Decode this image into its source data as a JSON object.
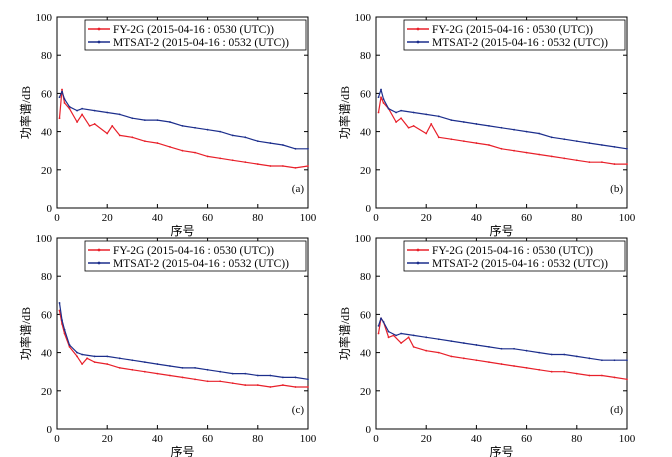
{
  "chart_data": [
    {
      "type": "line",
      "panel_label": "(a)",
      "xlabel": "序号",
      "ylabel": "功率谱/dB",
      "xlim": [
        0,
        100
      ],
      "ylim": [
        0,
        100
      ],
      "xticks": [
        0,
        20,
        40,
        60,
        80,
        100
      ],
      "yticks": [
        0,
        20,
        40,
        60,
        80,
        100
      ],
      "legend_position": "top-right",
      "series": [
        {
          "name": "FY-2G (2015-04-16 : 0530 (UTC))",
          "color": "#e8202a",
          "x": [
            1,
            2,
            3,
            5,
            8,
            10,
            13,
            15,
            20,
            22,
            25,
            30,
            35,
            40,
            45,
            50,
            55,
            60,
            65,
            70,
            75,
            80,
            85,
            90,
            95,
            100
          ],
          "y": [
            47,
            62,
            55,
            52,
            45,
            49,
            43,
            44,
            39,
            43,
            38,
            37,
            35,
            34,
            32,
            30,
            29,
            27,
            26,
            25,
            24,
            23,
            22,
            22,
            21,
            22
          ]
        },
        {
          "name": "MTSAT-2 (2015-04-16 : 0532 (UTC))",
          "color": "#1c2e8c",
          "x": [
            1,
            2,
            3,
            5,
            8,
            10,
            15,
            20,
            25,
            30,
            35,
            40,
            45,
            50,
            55,
            60,
            65,
            70,
            75,
            80,
            85,
            90,
            95,
            100
          ],
          "y": [
            58,
            61,
            57,
            53,
            51,
            52,
            51,
            50,
            49,
            47,
            46,
            46,
            45,
            43,
            42,
            41,
            40,
            38,
            37,
            35,
            34,
            33,
            31,
            31
          ]
        }
      ]
    },
    {
      "type": "line",
      "panel_label": "(b)",
      "xlabel": "序号",
      "ylabel": "功率谱/dB",
      "xlim": [
        0,
        100
      ],
      "ylim": [
        0,
        100
      ],
      "xticks": [
        0,
        20,
        40,
        60,
        80,
        100
      ],
      "yticks": [
        0,
        20,
        40,
        60,
        80,
        100
      ],
      "legend_position": "top-right",
      "series": [
        {
          "name": "FY-2G (2015-04-16 : 0530 (UTC))",
          "color": "#e8202a",
          "x": [
            1,
            2,
            3,
            5,
            8,
            10,
            13,
            15,
            20,
            22,
            25,
            30,
            35,
            40,
            45,
            50,
            55,
            60,
            65,
            70,
            75,
            80,
            85,
            90,
            95,
            100
          ],
          "y": [
            50,
            58,
            55,
            52,
            45,
            47,
            42,
            43,
            39,
            44,
            37,
            36,
            35,
            34,
            33,
            31,
            30,
            29,
            28,
            27,
            26,
            25,
            24,
            24,
            23,
            23
          ]
        },
        {
          "name": "MTSAT-2 (2015-04-16 : 0532 (UTC))",
          "color": "#1c2e8c",
          "x": [
            1,
            2,
            3,
            5,
            8,
            10,
            15,
            20,
            25,
            30,
            35,
            40,
            45,
            50,
            55,
            60,
            65,
            70,
            75,
            80,
            85,
            90,
            95,
            100
          ],
          "y": [
            58,
            62,
            57,
            52,
            50,
            51,
            50,
            49,
            48,
            46,
            45,
            44,
            43,
            42,
            41,
            40,
            39,
            37,
            36,
            35,
            34,
            33,
            32,
            31
          ]
        }
      ]
    },
    {
      "type": "line",
      "panel_label": "(c)",
      "xlabel": "序号",
      "ylabel": "功率谱/dB",
      "xlim": [
        0,
        100
      ],
      "ylim": [
        0,
        100
      ],
      "xticks": [
        0,
        20,
        40,
        60,
        80,
        100
      ],
      "yticks": [
        0,
        20,
        40,
        60,
        80,
        100
      ],
      "legend_position": "top-right",
      "series": [
        {
          "name": "FY-2G (2015-04-16 : 0530 (UTC))",
          "color": "#e8202a",
          "x": [
            1,
            2,
            3,
            5,
            8,
            10,
            12,
            15,
            20,
            25,
            30,
            35,
            40,
            45,
            50,
            55,
            60,
            65,
            70,
            75,
            80,
            85,
            90,
            95,
            100
          ],
          "y": [
            62,
            55,
            50,
            43,
            38,
            34,
            37,
            35,
            34,
            32,
            31,
            30,
            29,
            28,
            27,
            26,
            25,
            25,
            24,
            23,
            23,
            22,
            23,
            22,
            22
          ]
        },
        {
          "name": "MTSAT-2 (2015-04-16 : 0532 (UTC))",
          "color": "#1c2e8c",
          "x": [
            1,
            2,
            3,
            5,
            8,
            10,
            15,
            20,
            25,
            30,
            35,
            40,
            45,
            50,
            55,
            60,
            65,
            70,
            75,
            80,
            85,
            90,
            95,
            100
          ],
          "y": [
            66,
            57,
            52,
            44,
            40,
            39,
            38,
            38,
            37,
            36,
            35,
            34,
            33,
            32,
            32,
            31,
            30,
            29,
            29,
            28,
            28,
            27,
            27,
            26
          ]
        }
      ]
    },
    {
      "type": "line",
      "panel_label": "(d)",
      "xlabel": "序号",
      "ylabel": "功率谱/dB",
      "xlim": [
        0,
        100
      ],
      "ylim": [
        0,
        100
      ],
      "xticks": [
        0,
        20,
        40,
        60,
        80,
        100
      ],
      "yticks": [
        0,
        20,
        40,
        60,
        80,
        100
      ],
      "legend_position": "top-right",
      "series": [
        {
          "name": "FY-2G (2015-04-16 : 0530 (UTC))",
          "color": "#e8202a",
          "x": [
            1,
            2,
            3,
            5,
            7,
            10,
            13,
            15,
            20,
            25,
            30,
            35,
            40,
            45,
            50,
            55,
            60,
            65,
            70,
            75,
            80,
            85,
            90,
            95,
            100
          ],
          "y": [
            50,
            58,
            56,
            48,
            49,
            45,
            48,
            43,
            41,
            40,
            38,
            37,
            36,
            35,
            34,
            33,
            32,
            31,
            30,
            30,
            29,
            28,
            28,
            27,
            26
          ]
        },
        {
          "name": "MTSAT-2 (2015-04-16 : 0532 (UTC))",
          "color": "#1c2e8c",
          "x": [
            1,
            2,
            3,
            5,
            8,
            10,
            15,
            20,
            25,
            30,
            35,
            40,
            45,
            50,
            55,
            60,
            65,
            70,
            75,
            80,
            85,
            90,
            95,
            100
          ],
          "y": [
            54,
            58,
            56,
            51,
            49,
            50,
            49,
            48,
            47,
            46,
            45,
            44,
            43,
            42,
            42,
            41,
            40,
            39,
            39,
            38,
            37,
            36,
            36,
            36
          ]
        }
      ]
    }
  ]
}
